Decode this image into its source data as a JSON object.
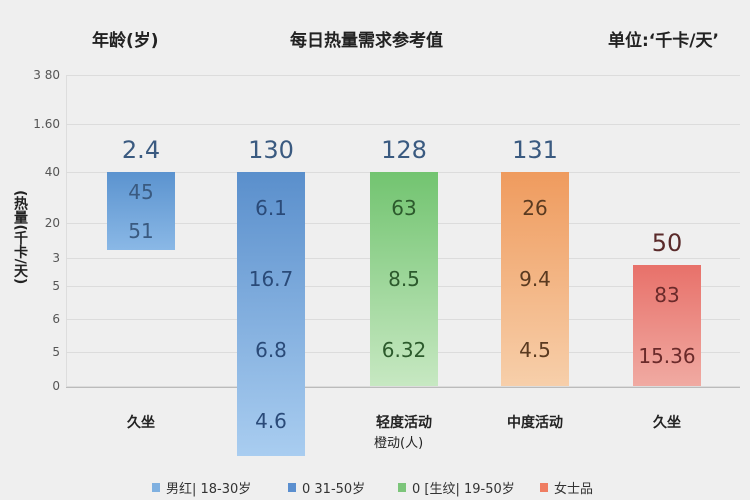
{
  "chart_data": {
    "type": "bar",
    "title": "每日热量需求参考值",
    "left_header": "年龄(岁)",
    "unit_label": "单位:‘千卡/天’",
    "ylabel": "(热量(千卡/天)",
    "xlabel": "橙动(人)",
    "yticks": [
      "3 80",
      "1.60",
      "40",
      "20",
      "3",
      "5",
      "6",
      "5",
      "0"
    ],
    "ylim": [
      0,
      40
    ],
    "categories": [
      "久坐",
      "",
      "轻度活动",
      "中度活动",
      "久坐"
    ],
    "bars": [
      {
        "top": 40,
        "bottom": 25.4,
        "color": "#5b93cf",
        "color2": "#8ab8e6",
        "top_label": "2.4",
        "labels": [
          "45",
          "51"
        ]
      },
      {
        "top": 40,
        "bottom": -13.1,
        "color": "#5a8fcc",
        "color2": "#a9cdf0",
        "top_label": "130",
        "labels": [
          "6.1",
          "16.7",
          "6.8",
          "4.6"
        ]
      },
      {
        "top": 40,
        "bottom": 0,
        "color": "#72c470",
        "color2": "#c7e8c2",
        "top_label": "128",
        "labels": [
          "63",
          "8.5",
          "6.32"
        ]
      },
      {
        "top": 40,
        "bottom": 0,
        "color": "#ef9b5e",
        "color2": "#f7cfaa",
        "top_label": "131",
        "labels": [
          "26",
          "9.4",
          "4.5"
        ]
      },
      {
        "top": 22.6,
        "bottom": 0,
        "color": "#e8716a",
        "color2": "#f0aaa2",
        "top_label": "50",
        "labels": [
          "83",
          "15.36"
        ]
      }
    ],
    "legend": [
      {
        "label": "男红| 18-30岁",
        "color": "#7fb0e0"
      },
      {
        "label": "0  31-50岁",
        "color": "#5b8fcf"
      },
      {
        "label": "0 [生纹| 19-50岁",
        "color": "#7cc57a"
      },
      {
        "label": "女士品",
        "color": "#ef7d62"
      }
    ]
  }
}
